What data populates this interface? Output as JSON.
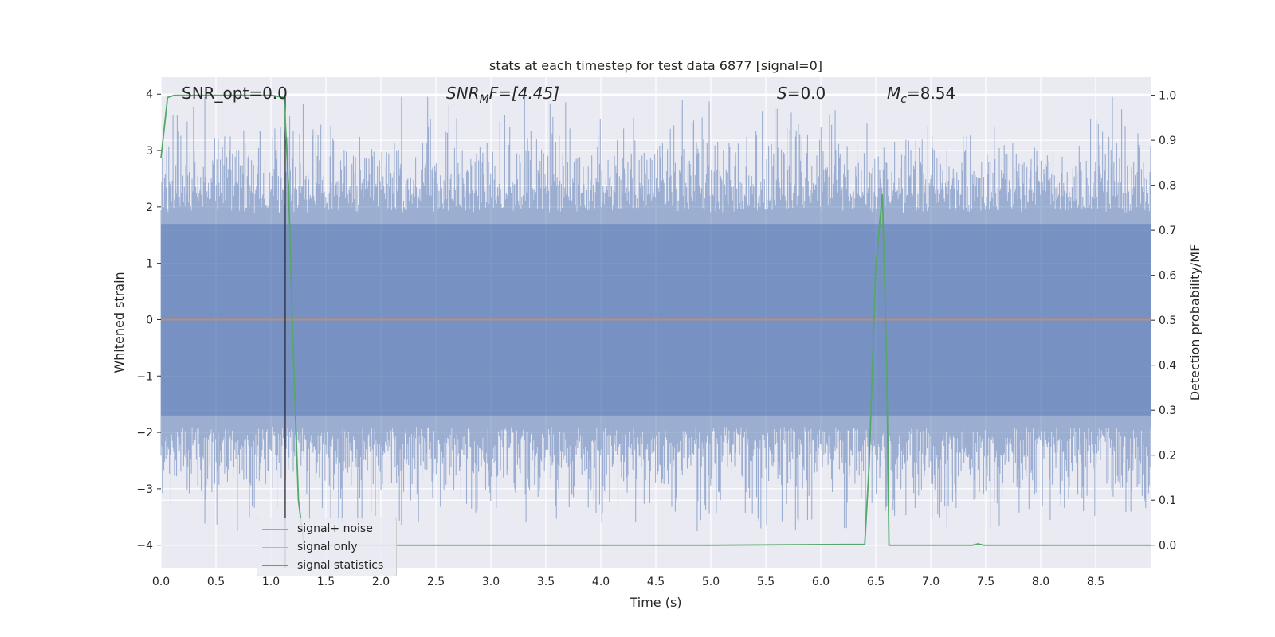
{
  "chart_data": {
    "type": "line",
    "title": "stats at each timestep for test data 6877 [signal=0]",
    "xlabel": "Time (s)",
    "ylabel_left": "Whitened strain",
    "ylabel_right": "Detection probability/MF",
    "xlim": [
      0.0,
      9.0
    ],
    "ylim_left": [
      -4.4,
      4.3
    ],
    "ylim_right": [
      -0.05,
      1.04
    ],
    "x_ticks": [
      "0.0",
      "0.5",
      "1.0",
      "1.5",
      "2.0",
      "2.5",
      "3.0",
      "3.5",
      "4.0",
      "4.5",
      "5.0",
      "5.5",
      "6.0",
      "6.5",
      "7.0",
      "7.5",
      "8.0",
      "8.5"
    ],
    "y_ticks_left": [
      "4",
      "3",
      "2",
      "1",
      "0",
      "−1",
      "−2",
      "−3",
      "−4"
    ],
    "y_ticks_right": [
      "1.0",
      "0.9",
      "0.8",
      "0.7",
      "0.6",
      "0.5",
      "0.4",
      "0.3",
      "0.2",
      "0.1",
      "0.0"
    ],
    "grid": true,
    "legend_position": "lower-left",
    "annotations": {
      "snr_opt": "SNR_opt=0.0",
      "snr_mf_base": "SNR",
      "snr_mf_sub": "M",
      "snr_mf_rest": "F=[4.45]",
      "s_italic": "S",
      "s_value": "=0.0",
      "mc_base": "M",
      "mc_sub": "c",
      "mc_value": "=8.54"
    },
    "vertical_marker_x": 1.13,
    "series": [
      {
        "name": "signal+ noise",
        "color": "#4c72b0",
        "description_values": {
          "typical_envelope": [
            -2.3,
            2.4
          ],
          "max": 3.95,
          "min": -3.75
        }
      },
      {
        "name": "signal only",
        "color": "#dd8452",
        "values_constant": 0.0
      },
      {
        "name": "signal statistics",
        "color": "#55a868",
        "x": [
          0.0,
          0.06,
          0.12,
          0.5,
          1.0,
          1.12,
          1.16,
          1.2,
          1.25,
          1.3,
          1.5,
          3.0,
          5.0,
          6.4,
          6.44,
          6.5,
          6.56,
          6.6,
          6.62,
          6.7,
          7.0,
          7.38,
          7.43,
          7.48,
          8.0,
          9.0
        ],
        "values": [
          0.86,
          0.995,
          1.0,
          1.0,
          1.0,
          0.995,
          0.8,
          0.45,
          0.1,
          0.0,
          0.0,
          0.0,
          0.0,
          0.002,
          0.18,
          0.62,
          0.78,
          0.4,
          0.0,
          0.0,
          0.0,
          0.0,
          0.003,
          0.0,
          0.0,
          0.0
        ]
      }
    ],
    "legend": [
      "signal+ noise",
      "signal only",
      "signal statistics"
    ]
  }
}
